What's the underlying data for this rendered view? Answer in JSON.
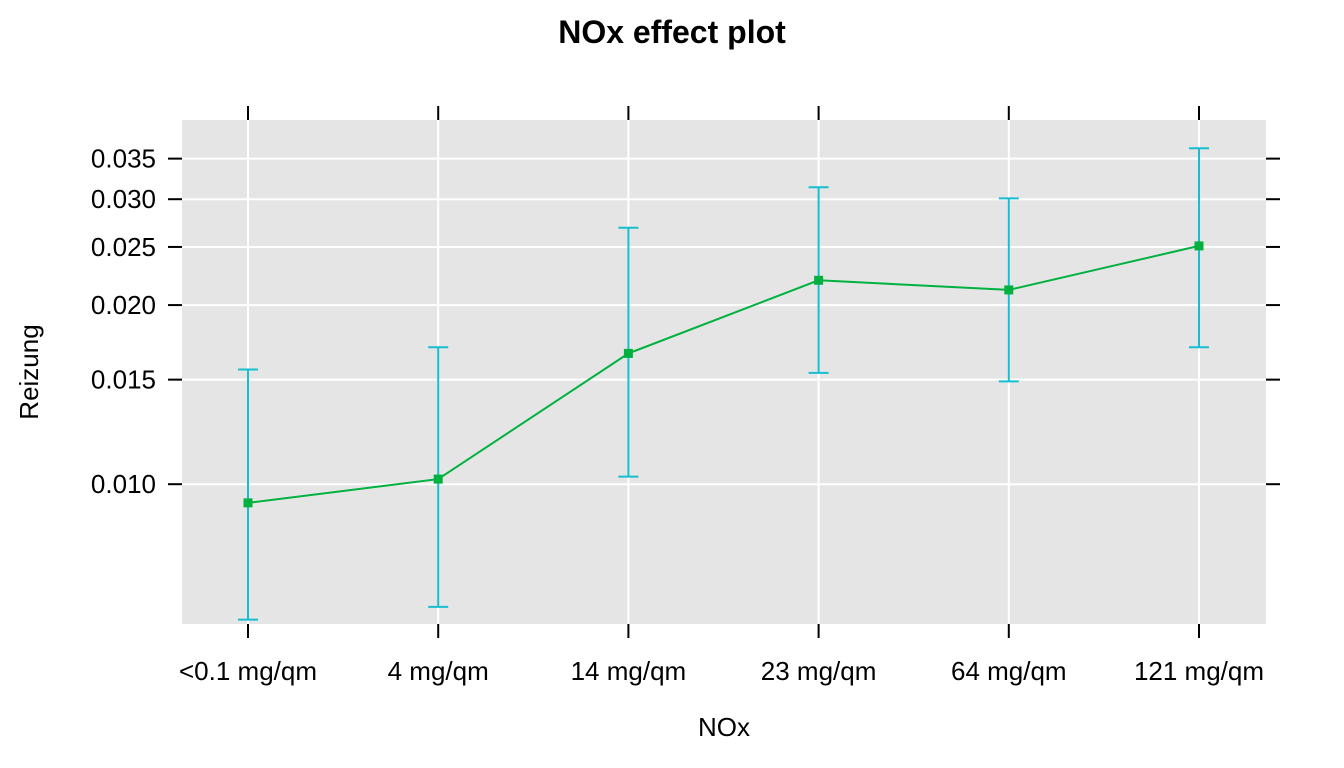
{
  "chart_data": {
    "type": "line",
    "title": "NOx effect plot",
    "xlabel": "NOx",
    "ylabel": "Reizung",
    "y_scale": "logit",
    "ylim": [
      0.0058,
      0.0405
    ],
    "categories": [
      "<0.1 mg/qm",
      "4 mg/qm",
      "14 mg/qm",
      "23 mg/qm",
      "64 mg/qm",
      "121 mg/qm"
    ],
    "values": [
      0.0093,
      0.0102,
      0.0166,
      0.022,
      0.0212,
      0.0251
    ],
    "lower": [
      0.0059,
      0.0062,
      0.0103,
      0.0154,
      0.0149,
      0.017
    ],
    "upper": [
      0.0156,
      0.017,
      0.0269,
      0.0314,
      0.0301,
      0.0364
    ],
    "yticks": [
      0.01,
      0.015,
      0.02,
      0.025,
      0.03,
      0.035
    ],
    "ytick_labels": [
      "0.010",
      "0.015",
      "0.020",
      "0.025",
      "0.030",
      "0.035"
    ],
    "grid": true,
    "colors": {
      "panel_bg": "#e5e5e5",
      "grid": "#ffffff",
      "line": "#00b140",
      "ci": "#17becf",
      "tick": "#000000"
    }
  }
}
